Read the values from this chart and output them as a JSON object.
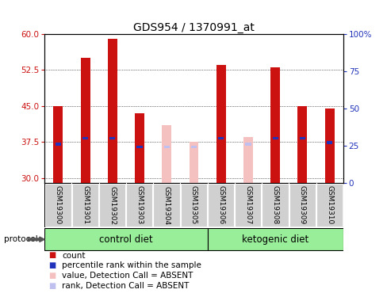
{
  "title": "GDS954 / 1370991_at",
  "samples": [
    "GSM19300",
    "GSM19301",
    "GSM19302",
    "GSM19303",
    "GSM19304",
    "GSM19305",
    "GSM19306",
    "GSM19307",
    "GSM19308",
    "GSM19309",
    "GSM19310"
  ],
  "count_values": [
    45.0,
    55.0,
    59.0,
    43.5,
    null,
    null,
    53.5,
    null,
    53.0,
    45.0,
    44.5
  ],
  "rank_values_pct": [
    26.0,
    30.0,
    30.0,
    24.0,
    null,
    null,
    30.0,
    null,
    30.0,
    30.0,
    27.0
  ],
  "absent_value_values": [
    null,
    null,
    null,
    null,
    41.0,
    37.5,
    null,
    38.5,
    null,
    null,
    null
  ],
  "absent_rank_pct": [
    null,
    null,
    null,
    null,
    24.0,
    24.0,
    null,
    26.0,
    null,
    null,
    null
  ],
  "ylim_left": [
    29,
    60
  ],
  "ylim_right": [
    0,
    100
  ],
  "yticks_left": [
    30,
    37.5,
    45,
    52.5,
    60
  ],
  "yticks_right": [
    0,
    25,
    50,
    75,
    100
  ],
  "control_indices": [
    0,
    1,
    2,
    3,
    4,
    5
  ],
  "ketogenic_indices": [
    6,
    7,
    8,
    9,
    10
  ],
  "group_labels": [
    "control diet",
    "ketogenic diet"
  ],
  "protocol_label": "protocol",
  "count_color": "#cc1111",
  "rank_color": "#2233bb",
  "absent_value_color": "#f5c0c0",
  "absent_rank_color": "#c0c0f0",
  "group_bg_color": "#99ee99",
  "sample_bg_color": "#d0d0d0",
  "title_fontsize": 10,
  "tick_fontsize": 7.5,
  "sample_fontsize": 6.5,
  "legend_fontsize": 7.5
}
